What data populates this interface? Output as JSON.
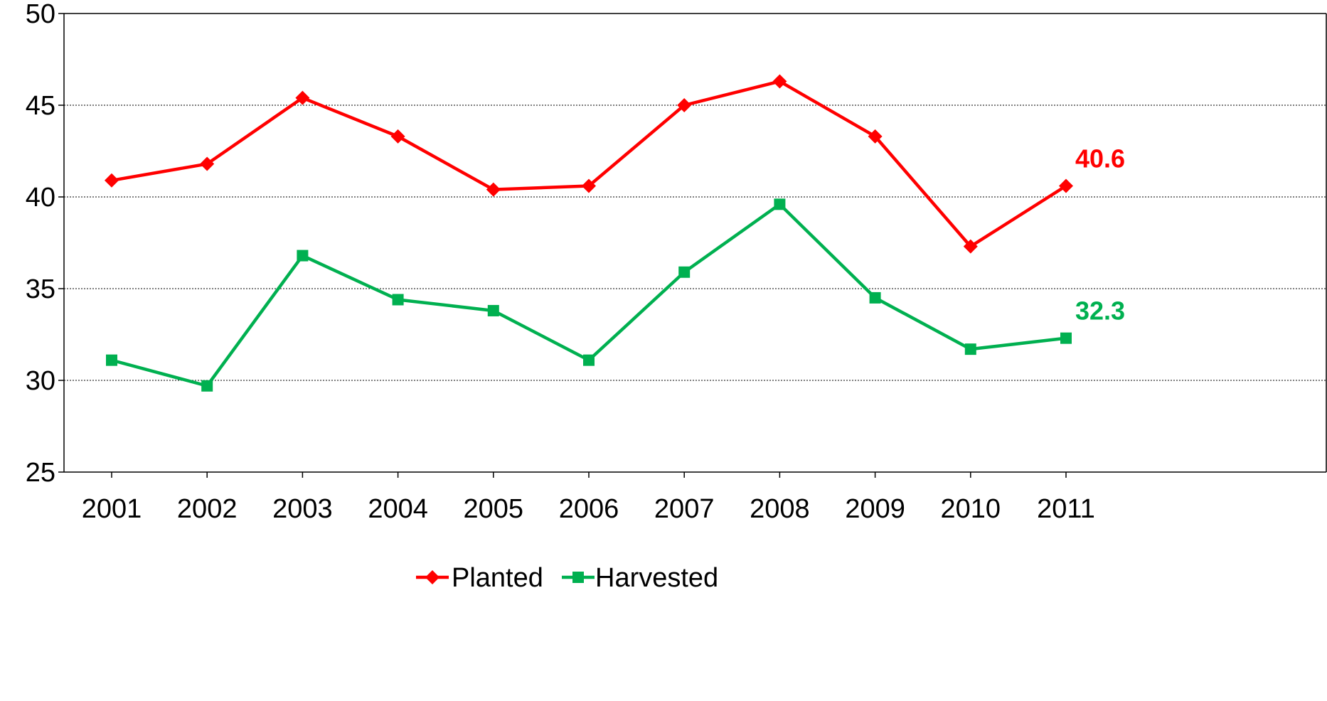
{
  "chart_data": {
    "type": "line",
    "categories": [
      "2001",
      "2002",
      "2003",
      "2004",
      "2005",
      "2006",
      "2007",
      "2008",
      "2009",
      "2010",
      "2011"
    ],
    "ylim": [
      25,
      50
    ],
    "yticks": [
      "25",
      "30",
      "35",
      "40",
      "45",
      "50"
    ],
    "grid": "horizontal dotted",
    "legend_position": "bottom",
    "series": [
      {
        "name": "Planted",
        "color": "#ff0000",
        "marker": "diamond",
        "values": [
          40.9,
          41.8,
          45.4,
          43.3,
          40.4,
          40.6,
          45.0,
          46.3,
          43.3,
          37.3,
          40.6
        ],
        "end_label": "40.6"
      },
      {
        "name": "Harvested",
        "color": "#00b050",
        "marker": "square",
        "values": [
          31.1,
          29.7,
          36.8,
          34.4,
          33.8,
          31.1,
          35.9,
          39.6,
          34.5,
          31.7,
          32.3
        ],
        "end_label": "32.3"
      }
    ]
  }
}
